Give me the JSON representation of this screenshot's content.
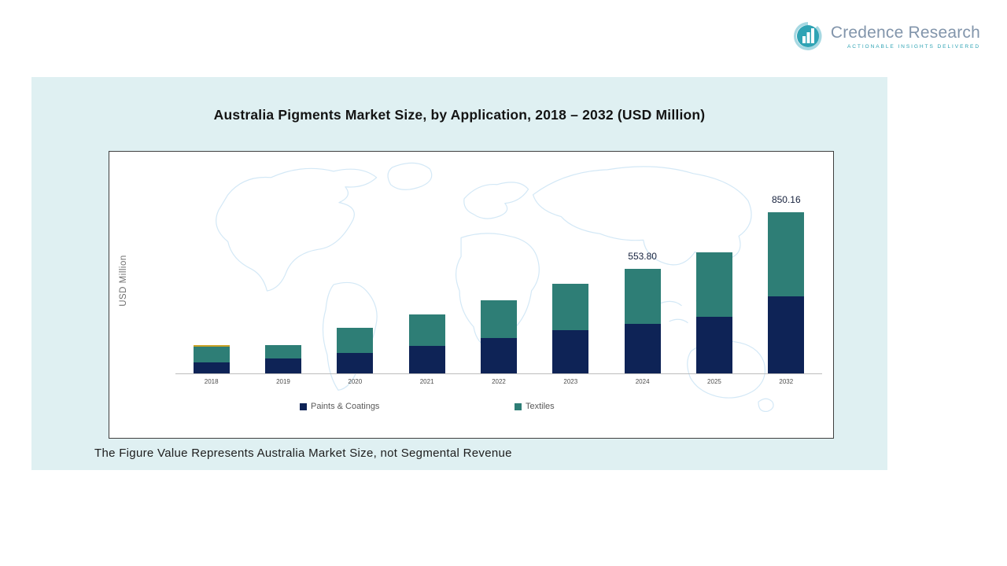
{
  "logo": {
    "name": "Credence Research",
    "tagline": "ACTIONABLE INSIGHTS DELIVERED",
    "icon": "bar-chart-icon",
    "colors": {
      "name_text": "#8295ab",
      "tagline_text": "#2fa3b4",
      "icon_teal": "#2fa3b4",
      "icon_light": "#a6d8e2"
    }
  },
  "panel": {
    "background": "#dff0f2"
  },
  "chart_data": {
    "type": "bar",
    "stacked": true,
    "title": "Australia Pigments Market Size, by Application, 2018 – 2032 (USD Million)",
    "ylabel": "USD Million",
    "xlabel": "",
    "categories": [
      "2018",
      "2019",
      "2020",
      "2021",
      "2022",
      "2023",
      "2024",
      "2025",
      "2032"
    ],
    "series": [
      {
        "name": "Paints & Coatings",
        "color": "#0e2356",
        "values": [
          60,
          80,
          108,
          146,
          185,
          227,
          261,
          300,
          406
        ]
      },
      {
        "name": "Textiles",
        "color": "#2e7e76",
        "values": [
          80,
          70,
          132,
          164,
          202,
          247,
          292.8,
          337,
          444.16
        ]
      }
    ],
    "totals": [
      140,
      150,
      240,
      310,
      387,
      474,
      553.8,
      637,
      850.16
    ],
    "data_labels": [
      {
        "category": "2024",
        "text": "553.80"
      },
      {
        "category": "2032",
        "text": "850.16"
      }
    ],
    "top_accent": {
      "category": "2018",
      "color": "#c9a227"
    },
    "ylim": [
      0,
      900
    ],
    "grid": false,
    "legend_position": "bottom"
  },
  "note": "The Figure Value Represents Australia Market Size, not Segmental Revenue"
}
